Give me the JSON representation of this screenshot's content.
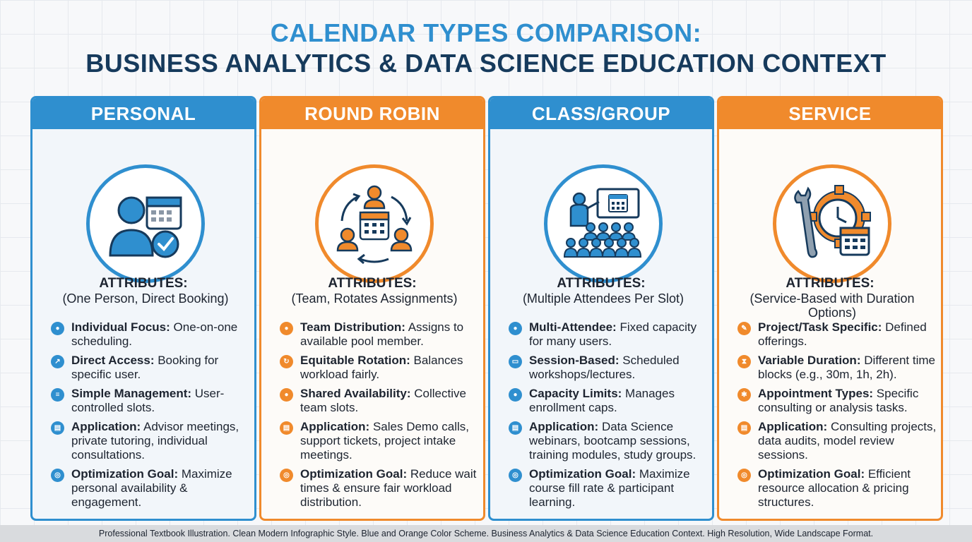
{
  "title": {
    "line1": "CALENDAR TYPES COMPARISON:",
    "line2": "BUSINESS ANALYTICS & DATA SCIENCE EDUCATION CONTEXT"
  },
  "colors": {
    "blue": "#2f8fcf",
    "orange": "#f08a2c",
    "navy": "#163a5c"
  },
  "cards": [
    {
      "title": "PERSONAL",
      "icon": "person-calendar-check-icon",
      "attributes_label": "ATTRIBUTES:",
      "attributes_sub": "(One Person, Direct Booking)",
      "items": [
        {
          "label": "Individual Focus:",
          "text": " One-on-one scheduling.",
          "icon": "user-icon"
        },
        {
          "label": "Direct Access:",
          "text": " Booking for specific user.",
          "icon": "link-icon"
        },
        {
          "label": "Simple Management:",
          "text": " User-controlled slots.",
          "icon": "list-icon"
        },
        {
          "label": "Application:",
          "text": " Advisor meetings, private tutoring, individual consultations.",
          "icon": "document-icon"
        },
        {
          "label": "Optimization Goal:",
          "text": " Maximize personal availability & engagement.",
          "icon": "target-icon"
        }
      ]
    },
    {
      "title": "ROUND ROBIN",
      "icon": "team-rotation-calendar-icon",
      "attributes_label": "ATTRIBUTES:",
      "attributes_sub": "(Team, Rotates Assignments)",
      "items": [
        {
          "label": "Team Distribution:",
          "text": " Assigns to available pool member.",
          "icon": "team-icon"
        },
        {
          "label": "Equitable Rotation:",
          "text": " Balances workload fairly.",
          "icon": "rotate-icon"
        },
        {
          "label": "Shared Availability:",
          "text": " Collective team slots.",
          "icon": "team-icon"
        },
        {
          "label": "Application:",
          "text": " Sales Demo calls, support tickets, project intake meetings.",
          "icon": "document-icon"
        },
        {
          "label": "Optimization Goal:",
          "text": " Reduce wait times & ensure fair workload distribution.",
          "icon": "target-icon"
        }
      ]
    },
    {
      "title": "CLASS/GROUP",
      "icon": "classroom-presentation-icon",
      "attributes_label": "ATTRIBUTES:",
      "attributes_sub": "(Multiple Attendees Per Slot)",
      "items": [
        {
          "label": "Multi-Attendee:",
          "text": " Fixed capacity for many users.",
          "icon": "team-icon"
        },
        {
          "label": "Session-Based:",
          "text": " Scheduled workshops/lectures.",
          "icon": "presentation-icon"
        },
        {
          "label": "Capacity Limits:",
          "text": " Manages enrollment caps.",
          "icon": "team-icon"
        },
        {
          "label": "Application:",
          "text": " Data Science webinars, bootcamp sessions, training modules, study groups.",
          "icon": "document-icon"
        },
        {
          "label": "Optimization Goal:",
          "text": " Maximize course fill rate & participant learning.",
          "icon": "target-icon"
        }
      ]
    },
    {
      "title": "SERVICE",
      "icon": "wrench-gear-clock-calendar-icon",
      "attributes_label": "ATTRIBUTES:",
      "attributes_sub": "(Service-Based with Duration Options)",
      "items": [
        {
          "label": "Project/Task Specific:",
          "text": " Defined offerings.",
          "icon": "wrench-icon"
        },
        {
          "label": "Variable Duration:",
          "text": " Different time blocks (e.g., 30m, 1h, 2h).",
          "icon": "hourglass-icon"
        },
        {
          "label": "Appointment Types:",
          "text": " Specific consulting or analysis tasks.",
          "icon": "gear-icon"
        },
        {
          "label": "Application:",
          "text": " Consulting projects, data audits, model review sessions.",
          "icon": "document-icon"
        },
        {
          "label": "Optimization Goal:",
          "text": " Efficient resource allocation & pricing structures.",
          "icon": "target-icon"
        }
      ]
    }
  ],
  "footer": "Professional Textbook Illustration. Clean Modern Infographic Style. Blue and Orange Color Scheme. Business Analytics & Data Science Education Context. High Resolution, Wide Landscape Format."
}
